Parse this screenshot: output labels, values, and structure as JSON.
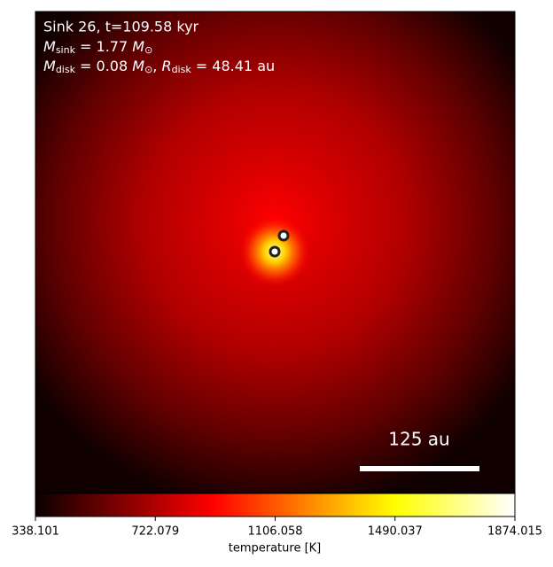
{
  "chart_data": {
    "type": "image",
    "annotation": "Sink 26, t=109.58 kyr",
    "sink_mass": {
      "symbol": "M",
      "sub": "sink",
      "text": " = 1.77 ",
      "unit": "M",
      "unit_sub": "⊙"
    },
    "disk": {
      "symbol": "M",
      "sub": "disk",
      "text": " = 0.08 ",
      "unit": "M",
      "unit_sub": "⊙",
      "sep": ", ",
      "r_symbol": "R",
      "r_sub": "disk",
      "r_text": " = 48.41 au"
    },
    "scale_bar": "125 au",
    "colorbar": {
      "label": "temperature [K]",
      "lim": [
        338.101,
        1874.015
      ],
      "ticks": [
        338.101,
        722.079,
        1106.058,
        1490.037,
        1874.015
      ]
    }
  }
}
